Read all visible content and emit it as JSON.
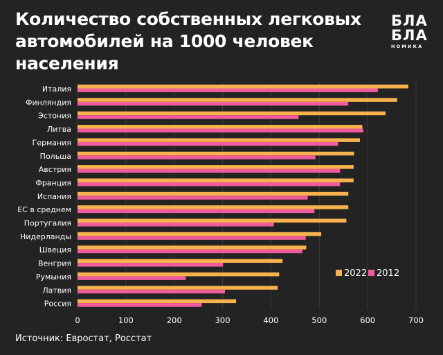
{
  "title": "Количество собственных легковых автомобилей на 1000 человек населения",
  "logo": {
    "line1": "БЛА",
    "line2": "БЛА",
    "line3": "НОМИКА"
  },
  "source": "Источник: Евростат, Росстат",
  "chart_data": {
    "type": "bar",
    "orientation": "horizontal",
    "title": "Количество собственных легковых автомобилей на 1000 человек населения",
    "categories": [
      "Италия",
      "Финляндия",
      "Эстония",
      "Литва",
      "Германия",
      "Польша",
      "Австрия",
      "Франция",
      "Испания",
      "ЕС в среднем",
      "Португалия",
      "Нидерланды",
      "Швеция",
      "Венгрия",
      "Румыния",
      "Латвия",
      "Россия"
    ],
    "series": [
      {
        "name": "2022",
        "color": "#F7B24E",
        "values": [
          684,
          661,
          637,
          589,
          584,
          572,
          571,
          571,
          560,
          560,
          556,
          504,
          473,
          424,
          417,
          414,
          328
        ]
      },
      {
        "name": "2012",
        "color": "#EF5B9C",
        "values": [
          621,
          560,
          457,
          591,
          539,
          492,
          543,
          543,
          476,
          490,
          406,
          472,
          465,
          301,
          224,
          305,
          257
        ]
      }
    ],
    "xlim": [
      0,
      700
    ],
    "xticks": [
      0,
      100,
      200,
      300,
      400,
      500,
      600,
      700
    ],
    "grid": true,
    "legend_position": "bottom-right"
  }
}
